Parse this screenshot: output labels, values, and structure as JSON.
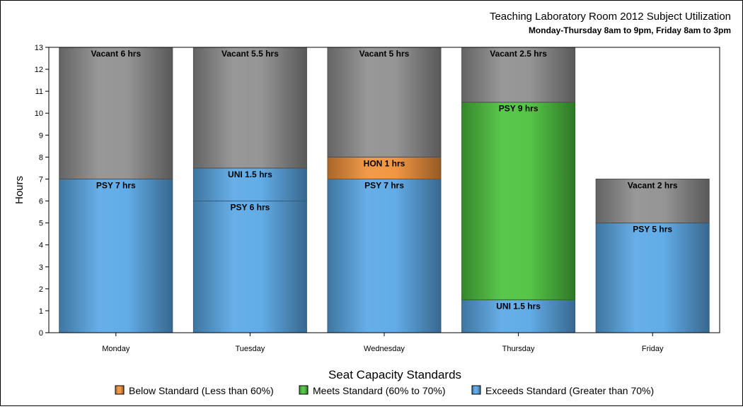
{
  "chart_data": {
    "type": "bar",
    "stacked": true,
    "title": "Teaching Laboratory Room 2012 Subject Utilization",
    "subtitle": "Monday-Thursday 8am to 9pm, Friday 8am to 3pm",
    "ylabel": "Hours",
    "xlabel": "",
    "ylim": [
      0,
      13
    ],
    "yticks": [
      "0",
      "1",
      "2",
      "3",
      "4",
      "5",
      "6",
      "7",
      "8",
      "9",
      "10",
      "11",
      "12",
      "13"
    ],
    "categories": [
      "Monday",
      "Tuesday",
      "Wednesday",
      "Thursday",
      "Friday"
    ],
    "bars": [
      {
        "category": "Monday",
        "segments": [
          {
            "label": "PSY 7 hrs",
            "value": 7,
            "status": "exceeds"
          },
          {
            "label": "Vacant 6 hrs",
            "value": 6,
            "status": "vacant"
          }
        ]
      },
      {
        "category": "Tuesday",
        "segments": [
          {
            "label": "PSY 6 hrs",
            "value": 6,
            "status": "exceeds"
          },
          {
            "label": "UNI 1.5 hrs",
            "value": 1.5,
            "status": "exceeds"
          },
          {
            "label": "Vacant 5.5 hrs",
            "value": 5.5,
            "status": "vacant"
          }
        ]
      },
      {
        "category": "Wednesday",
        "segments": [
          {
            "label": "PSY 7 hrs",
            "value": 7,
            "status": "exceeds"
          },
          {
            "label": "HON 1 hrs",
            "value": 1,
            "status": "below"
          },
          {
            "label": "Vacant 5 hrs",
            "value": 5,
            "status": "vacant"
          }
        ]
      },
      {
        "category": "Thursday",
        "segments": [
          {
            "label": "UNI 1.5 hrs",
            "value": 1.5,
            "status": "exceeds"
          },
          {
            "label": "PSY 9 hrs",
            "value": 9,
            "status": "meets"
          },
          {
            "label": "Vacant 2.5 hrs",
            "value": 2.5,
            "status": "vacant"
          }
        ]
      },
      {
        "category": "Friday",
        "segments": [
          {
            "label": "PSY 5 hrs",
            "value": 5,
            "status": "exceeds"
          },
          {
            "label": "Vacant 2 hrs",
            "value": 2,
            "status": "vacant"
          }
        ]
      }
    ],
    "legend": {
      "title": "Seat Capacity Standards",
      "placement": "bottom",
      "items": [
        {
          "label": "Below Standard (Less than 60%)",
          "status": "below"
        },
        {
          "label": "Meets Standard (60% to 70%)",
          "status": "meets"
        },
        {
          "label": "Exceeds Standard (Greater than 70%)",
          "status": "exceeds"
        }
      ]
    },
    "colors": {
      "below": "#f0923a",
      "meets": "#4cc23e",
      "exceeds": "#5aa8e6",
      "vacant": "#8f8f8f"
    },
    "grid": false
  }
}
